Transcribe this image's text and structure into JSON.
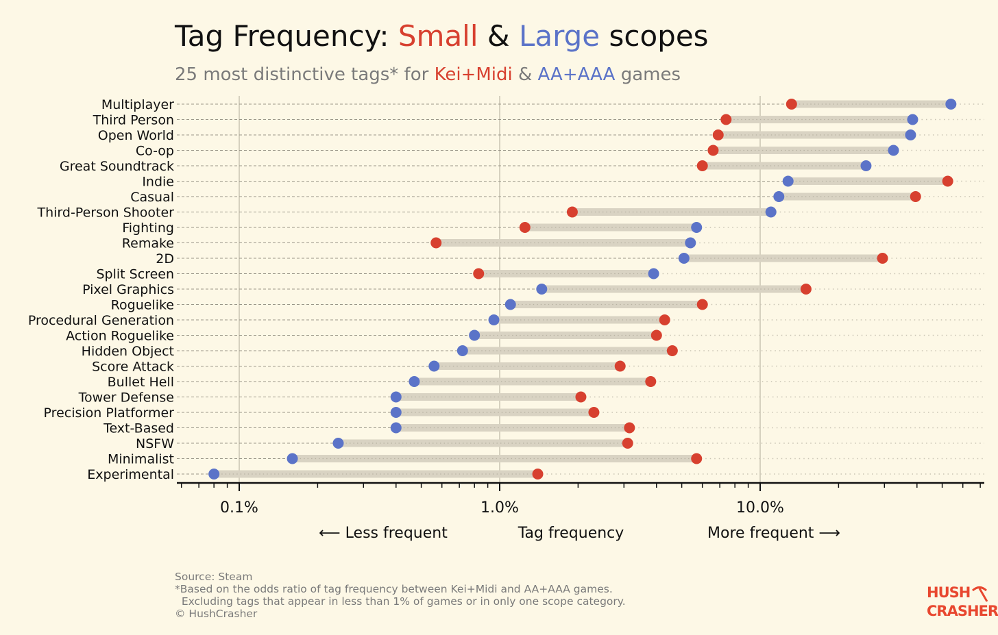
{
  "title": {
    "prefix": "Tag Frequency: ",
    "small": "Small",
    "amp": " & ",
    "large": "Large",
    "suffix": " scopes"
  },
  "subtitle": {
    "prefix": "25 most distinctive tags* for ",
    "small_label": "Kei+Midi",
    "amp": " & ",
    "large_label": "AA+AAA",
    "suffix": " games"
  },
  "colors": {
    "small": "#d7402f",
    "large": "#5b73c8",
    "background": "#fdf8e6",
    "range_bar": "#d9d3c3"
  },
  "chart_data": {
    "type": "dumbbell",
    "x_scale": "log",
    "xlim": [
      0.06,
      70
    ],
    "xticks": [
      {
        "value": 0.1,
        "label": "0.1%"
      },
      {
        "value": 1.0,
        "label": "1.0%"
      },
      {
        "value": 10.0,
        "label": "10.0%"
      }
    ],
    "xlabel": "Tag frequency",
    "x_left_note": "⟵  Less frequent",
    "x_right_note": "More frequent  ⟶",
    "grid": true,
    "series": [
      {
        "key": "small",
        "name": "Kei+Midi"
      },
      {
        "key": "large",
        "name": "AA+AAA"
      }
    ],
    "rows": [
      {
        "tag": "Multiplayer",
        "small": 13.2,
        "large": 54.0
      },
      {
        "tag": "Third Person",
        "small": 7.4,
        "large": 38.5
      },
      {
        "tag": "Open World",
        "small": 6.9,
        "large": 37.8
      },
      {
        "tag": "Co-op",
        "small": 6.6,
        "large": 32.5
      },
      {
        "tag": "Great Soundtrack",
        "small": 6.0,
        "large": 25.5
      },
      {
        "tag": "Indie",
        "small": 52.5,
        "large": 12.8
      },
      {
        "tag": "Casual",
        "small": 39.5,
        "large": 11.8
      },
      {
        "tag": "Third-Person Shooter",
        "small": 1.9,
        "large": 11.0
      },
      {
        "tag": "Fighting",
        "small": 1.25,
        "large": 5.7
      },
      {
        "tag": "Remake",
        "small": 0.57,
        "large": 5.4
      },
      {
        "tag": "2D",
        "small": 29.5,
        "large": 5.1
      },
      {
        "tag": "Split Screen",
        "small": 0.83,
        "large": 3.9
      },
      {
        "tag": "Pixel Graphics",
        "small": 15.0,
        "large": 1.45
      },
      {
        "tag": "Roguelike",
        "small": 6.0,
        "large": 1.1
      },
      {
        "tag": "Procedural Generation",
        "small": 4.3,
        "large": 0.95
      },
      {
        "tag": "Action Roguelike",
        "small": 4.0,
        "large": 0.8
      },
      {
        "tag": "Hidden Object",
        "small": 4.6,
        "large": 0.72
      },
      {
        "tag": "Score Attack",
        "small": 2.9,
        "large": 0.56
      },
      {
        "tag": "Bullet Hell",
        "small": 3.8,
        "large": 0.47
      },
      {
        "tag": "Tower Defense",
        "small": 2.05,
        "large": 0.4
      },
      {
        "tag": "Precision Platformer",
        "small": 2.3,
        "large": 0.4
      },
      {
        "tag": "Text-Based",
        "small": 3.15,
        "large": 0.4
      },
      {
        "tag": "NSFW",
        "small": 3.1,
        "large": 0.24
      },
      {
        "tag": "Minimalist",
        "small": 5.7,
        "large": 0.16
      },
      {
        "tag": "Experimental",
        "small": 1.4,
        "large": 0.08
      }
    ]
  },
  "notes": {
    "source": "Source: Steam",
    "footnote_1": "*Based on the odds ratio of tag frequency between Kei+Midi and AA+AAA games.",
    "footnote_2": "  Excluding tags that appear in less than 1% of games or in only one scope category.",
    "copyright": "© HushCrasher"
  },
  "logo": {
    "line1": "HUSH",
    "line2": "CRASHER",
    "icon": "pickaxe-icon"
  }
}
